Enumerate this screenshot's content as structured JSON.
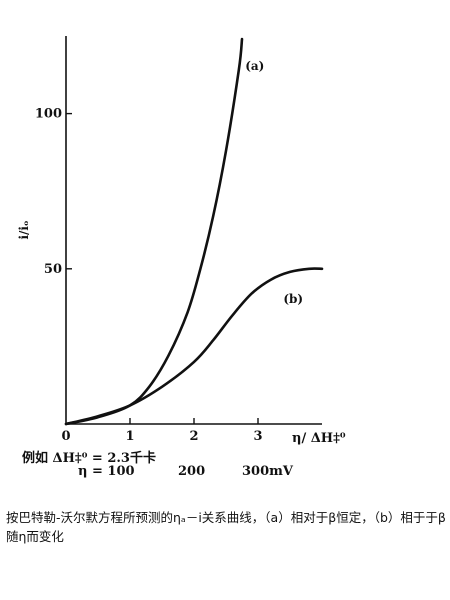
{
  "chart_data": {
    "type": "line",
    "xlabel": "η/ ΔH‡⁰",
    "ylabel": "i/iₒ",
    "xlim": [
      0,
      4
    ],
    "ylim": [
      0,
      125
    ],
    "xticks": [
      {
        "value": 0,
        "label": "0"
      },
      {
        "value": 1,
        "label": "1"
      },
      {
        "value": 2,
        "label": "2"
      },
      {
        "value": 3,
        "label": "3"
      }
    ],
    "yticks": [
      {
        "value": 50,
        "label": "50"
      },
      {
        "value": 100,
        "label": "100"
      }
    ],
    "grid": false,
    "legend": "none",
    "series": [
      {
        "name": "(a)",
        "label_at": {
          "x": 2.95,
          "y": 114
        },
        "x": [
          0,
          0.5,
          1.0,
          1.3,
          1.6,
          1.9,
          2.1,
          2.3,
          2.5,
          2.7,
          2.75
        ],
        "y": [
          0,
          2.2,
          6,
          12,
          22,
          36,
          50,
          67,
          88,
          114,
          124
        ]
      },
      {
        "name": "(b)",
        "label_at": {
          "x": 3.55,
          "y": 39
        },
        "x": [
          0,
          0.5,
          1.0,
          1.5,
          2.0,
          2.3,
          2.6,
          2.9,
          3.2,
          3.5,
          3.8,
          4.0
        ],
        "y": [
          0,
          2.5,
          6,
          12,
          20,
          27,
          35,
          42,
          46.5,
          49,
          50,
          50
        ]
      }
    ]
  },
  "example": {
    "line1": "例如 ΔH‡⁰ = 2.3千卡",
    "eta_prefix": "η = 100",
    "eta_mid": "200",
    "eta_end": "300mV"
  },
  "caption": "按巴特勒-沃尔默方程所预测的ηₐ－i关系曲线，（a）相对于β恒定，（b）相于于β随η而变化"
}
